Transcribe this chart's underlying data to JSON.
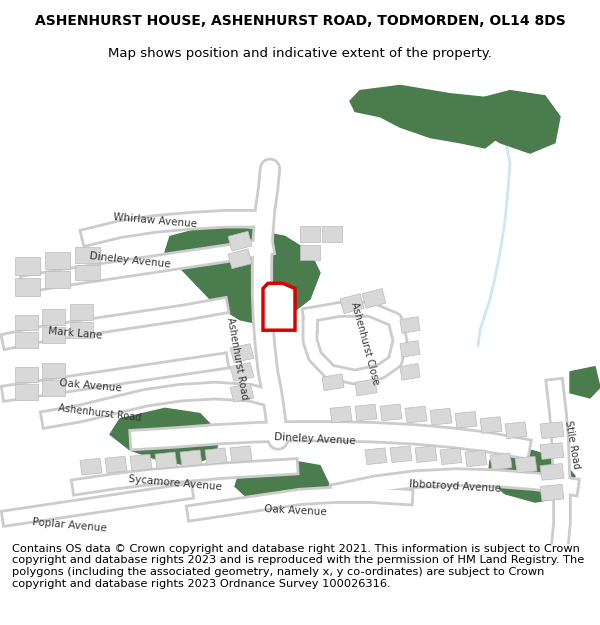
{
  "title_line1": "ASHENHURST HOUSE, ASHENHURST ROAD, TODMORDEN, OL14 8DS",
  "title_line2": "Map shows position and indicative extent of the property.",
  "copyright_text": "Contains OS data © Crown copyright and database right 2021. This information is subject to Crown copyright and database rights 2023 and is reproduced with the permission of HM Land Registry. The polygons (including the associated geometry, namely x, y co-ordinates) are subject to Crown copyright and database rights 2023 Ordnance Survey 100026316.",
  "title_fontsize": 10,
  "subtitle_fontsize": 9.5,
  "copyright_fontsize": 8.2,
  "bg_color": "#ffffff",
  "map_bg": "#f8f8f8",
  "green_color": "#4a7c4e",
  "road_fill": "#ffffff",
  "road_edge": "#cccccc",
  "building_fill": "#d8d8d8",
  "building_edge": "#bbbbbb",
  "red_polygon_color": "#dd0000",
  "water_color": "#cce8f0"
}
